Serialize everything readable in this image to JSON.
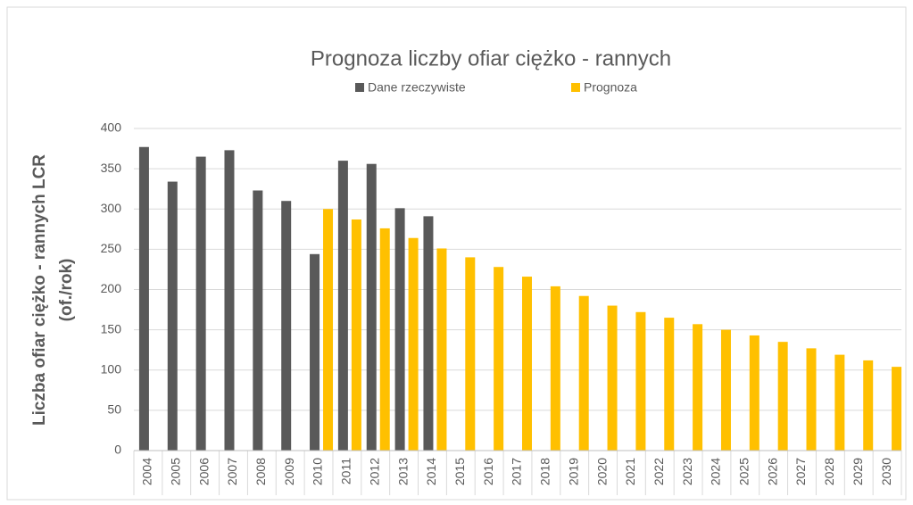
{
  "chart_data": {
    "type": "bar",
    "title": "Prognoza liczby ofiar ciężko - rannych",
    "y_label": [
      "Liczba ofiar ciężko - rannych LCR",
      "(of./rok)"
    ],
    "categories": [
      "2004",
      "2005",
      "2006",
      "2007",
      "2008",
      "2009",
      "2010",
      "2011",
      "2012",
      "2013",
      "2014",
      "2015",
      "2016",
      "2017",
      "2018",
      "2019",
      "2020",
      "2021",
      "2022",
      "2023",
      "2024",
      "2025",
      "2026",
      "2027",
      "2028",
      "2029",
      "2030"
    ],
    "series": [
      {
        "name": "Dane rzeczywiste",
        "color": "#595959",
        "values": [
          377,
          334,
          365,
          373,
          323,
          310,
          244,
          360,
          356,
          301,
          291,
          null,
          null,
          null,
          null,
          null,
          null,
          null,
          null,
          null,
          null,
          null,
          null,
          null,
          null,
          null,
          null
        ]
      },
      {
        "name": "Prognoza",
        "color": "#ffc000",
        "values": [
          null,
          null,
          null,
          null,
          null,
          null,
          300,
          287,
          276,
          264,
          251,
          240,
          228,
          216,
          204,
          192,
          180,
          172,
          165,
          157,
          150,
          143,
          135,
          127,
          119,
          112,
          104
        ]
      }
    ],
    "ylim": [
      0,
      400
    ],
    "yticks": [
      0,
      50,
      100,
      150,
      200,
      250,
      300,
      350,
      400
    ],
    "grid": true,
    "legend": "top"
  }
}
